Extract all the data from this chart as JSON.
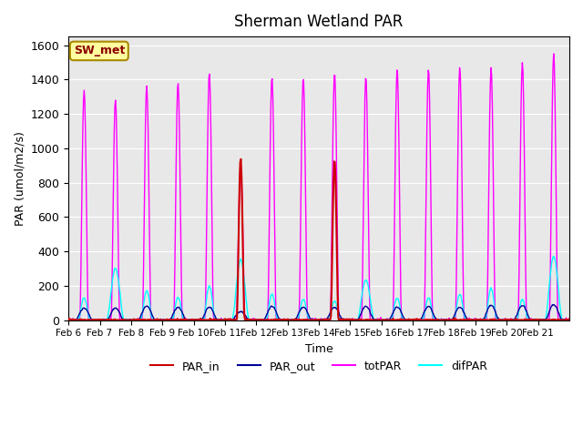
{
  "title": "Sherman Wetland PAR",
  "ylabel": "PAR (umol/m2/s)",
  "xlabel": "Time",
  "annotation": "SW_met",
  "ylim": [
    0,
    1650
  ],
  "background_color": "#e8e8e8",
  "colors": {
    "PAR_in": "#cc0000",
    "PAR_out": "#000099",
    "totPAR": "#ff00ff",
    "difPAR": "#00ffff"
  },
  "x_tick_labels": [
    "Feb 6",
    "Feb 7",
    "Feb 8",
    "Feb 9",
    "Feb 10",
    "Feb 11",
    "Feb 12",
    "Feb 13",
    "Feb 14",
    "Feb 15",
    "Feb 16",
    "Feb 17",
    "Feb 18",
    "Feb 19",
    "Feb 20",
    "Feb 21"
  ],
  "day_peaks_totPAR": [
    1340,
    1280,
    1360,
    1380,
    1440,
    900,
    1410,
    1410,
    1440,
    1420,
    1460,
    1460,
    1470,
    1470,
    1500,
    1550
  ],
  "day_peaks_difPAR": [
    130,
    300,
    170,
    130,
    200,
    350,
    150,
    120,
    110,
    230,
    130,
    130,
    150,
    185,
    120,
    370
  ],
  "day_peaks_PAR_out": [
    70,
    70,
    80,
    75,
    75,
    50,
    80,
    75,
    75,
    80,
    75,
    80,
    75,
    85,
    85,
    90
  ],
  "day_peaks_PAR_in_partial": [
    0,
    0,
    0,
    0,
    0,
    940,
    0,
    0,
    930,
    0,
    0,
    0,
    0,
    0,
    0,
    0
  ]
}
